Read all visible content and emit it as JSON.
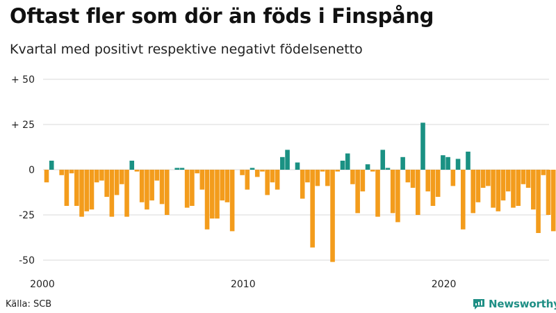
{
  "title": "Oftast fler som dör än föds i Finspång",
  "subtitle": "Kvartal med positivt respektive negativt födelsenetto",
  "source": "Källa: SCB",
  "brand": "Newsworthy",
  "colors": {
    "positive": "#1a9183",
    "negative": "#f39c1c",
    "grid": "#d9d9d9",
    "brand": "#1f8f85"
  },
  "chart_data": {
    "type": "bar",
    "title": "Oftast fler som dör än föds i Finspång",
    "subtitle": "Kvartal med positivt respektive negativt födelsenetto",
    "xlabel": "",
    "ylabel": "",
    "ylim": [
      -55,
      50
    ],
    "y_ticks": [
      {
        "value": 50,
        "label": "+ 50"
      },
      {
        "value": 25,
        "label": "+ 25"
      },
      {
        "value": 0,
        "label": "0"
      },
      {
        "value": -25,
        "label": "-25"
      },
      {
        "value": -50,
        "label": "-50"
      }
    ],
    "x_ticks": [
      {
        "year": 2000,
        "label": "2000"
      },
      {
        "year": 2010,
        "label": "2010"
      },
      {
        "year": 2020,
        "label": "2020"
      }
    ],
    "start_year": 2000,
    "quarters_per_year": 4,
    "values": [
      -7,
      5,
      0,
      -3,
      -20,
      -2,
      -20,
      -26,
      -23,
      -22,
      -7,
      -6,
      -15,
      -26,
      -14,
      -8,
      -26,
      5,
      -1,
      -18,
      -22,
      -17,
      -6,
      -19,
      -25,
      0,
      1,
      1,
      -21,
      -20,
      -2,
      -11,
      -33,
      -27,
      -27,
      -17,
      -18,
      -34,
      0,
      -3,
      -11,
      1,
      -4,
      -1,
      -14,
      -7,
      -11,
      7,
      11,
      0,
      4,
      -16,
      -7,
      -43,
      -9,
      -1,
      -9,
      -51,
      -1,
      5,
      9,
      -8,
      -24,
      -12,
      3,
      -1,
      -26,
      11,
      1,
      -24,
      -29,
      7,
      -7,
      -10,
      -25,
      26,
      -12,
      -20,
      -15,
      8,
      7,
      -9,
      6,
      -33,
      10,
      -24,
      -18,
      -10,
      -9,
      -21,
      -23,
      -17,
      -12,
      -21,
      -20,
      -8,
      -10,
      -22,
      -35,
      -3,
      -25,
      -34
    ]
  }
}
